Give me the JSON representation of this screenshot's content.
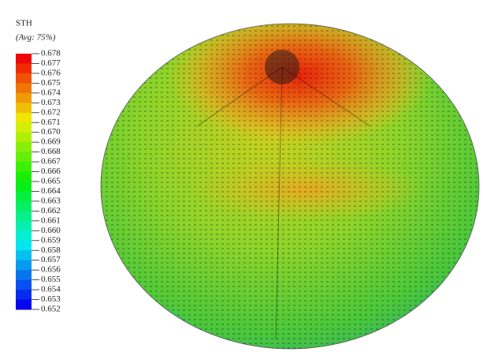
{
  "legend": {
    "title": "STH",
    "subtitle": "(Avg: 75%)",
    "labels": [
      "0.678",
      "0.677",
      "0.676",
      "0.675",
      "0.674",
      "0.673",
      "0.672",
      "0.671",
      "0.670",
      "0.669",
      "0.668",
      "0.667",
      "0.666",
      "0.665",
      "0.664",
      "0.663",
      "0.662",
      "0.661",
      "0.660",
      "0.659",
      "0.658",
      "0.657",
      "0.656",
      "0.655",
      "0.654",
      "0.653",
      "0.652"
    ]
  }
}
